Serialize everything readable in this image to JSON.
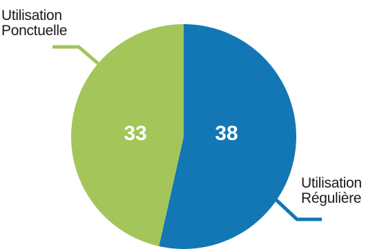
{
  "chart_data": {
    "type": "pie",
    "series": [
      {
        "name": "Utilisation Régulière",
        "label_lines": [
          "Utilisation",
          "Régulière"
        ],
        "value": 38,
        "value_label": "38",
        "color": "#1277b4"
      },
      {
        "name": "Utilisation Ponctuelle",
        "label_lines": [
          "Utilisation",
          "Ponctuelle"
        ],
        "value": 33,
        "value_label": "33",
        "color": "#a3c55a"
      }
    ],
    "start_angle_deg": 0,
    "direction": "clockwise",
    "legend": "none",
    "title": ""
  }
}
